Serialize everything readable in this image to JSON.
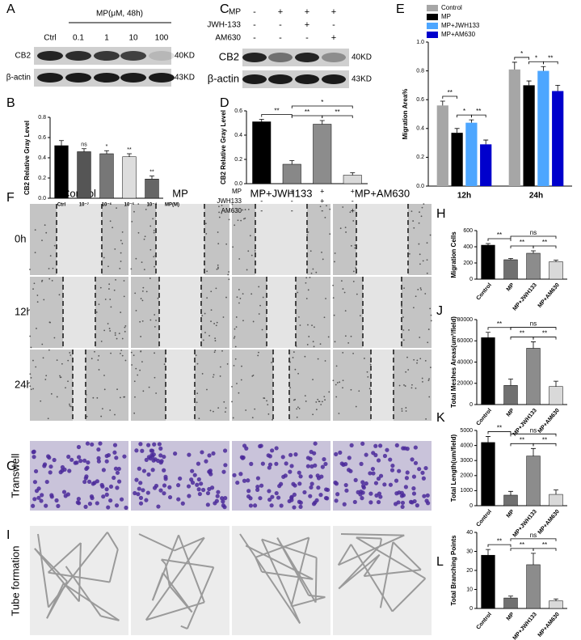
{
  "blot_a": {
    "letter": "A",
    "treatment": "MP(μM,  48h)",
    "lanes": [
      "Ctrl",
      "0.1",
      "1",
      "10",
      "100"
    ],
    "bands": [
      {
        "name": "CB2",
        "size": "40KD"
      },
      {
        "name": "β-actin",
        "size": "43KD"
      }
    ]
  },
  "blot_c": {
    "letter": "C",
    "conditions": [
      {
        "name": "MP",
        "signs": [
          "-",
          "+",
          "+",
          "+"
        ]
      },
      {
        "name": "JWH-133",
        "signs": [
          "-",
          "-",
          "+",
          "-"
        ]
      },
      {
        "name": "AM630",
        "signs": [
          "-",
          "-",
          "-",
          "+"
        ]
      }
    ],
    "bands": [
      {
        "name": "CB2",
        "size": "40KD"
      },
      {
        "name": "β-actin",
        "size": "43KD"
      }
    ]
  },
  "images": {
    "letter_f": "F",
    "letter_g": "G",
    "letter_i": "I",
    "columns": [
      "Control",
      "MP",
      "MP+JWH133",
      "MP+AM630"
    ],
    "rows": [
      "0h",
      "12h",
      "24h",
      "Transwell",
      "Tube formation"
    ]
  },
  "chart_data": [
    {
      "type": "bar",
      "letter": "B",
      "y_label": "CB2 Relative Gray Level",
      "categories": [
        "Ctrl",
        "10⁻⁷",
        "10⁻⁶",
        "10⁻⁵",
        "10⁻⁴"
      ],
      "x_note": "MP(M)",
      "values": [
        0.52,
        0.46,
        0.44,
        0.41,
        0.19
      ],
      "errors": [
        0.05,
        0.03,
        0.03,
        0.03,
        0.03
      ],
      "colors": [
        "#000000",
        "#555555",
        "#777777",
        "#dddddd",
        "#666666"
      ],
      "markers": [
        null,
        "ns",
        "*",
        "**",
        "**"
      ],
      "ylim": [
        0,
        0.8
      ],
      "yticks": [
        {
          "value": 0,
          "label": "0.0"
        },
        0.2,
        0.4,
        0.6,
        0.8
      ]
    },
    {
      "type": "bar",
      "letter": "D",
      "y_label": "CB2 Relative Gray Level",
      "categories": [
        null,
        null,
        null,
        null
      ],
      "conditions": [
        {
          "name": "MP",
          "signs": [
            "-",
            "+",
            "+",
            "+"
          ]
        },
        {
          "name": "JWH133",
          "signs": [
            "-",
            "-",
            "+",
            "-"
          ]
        },
        {
          "name": "AM630",
          "signs": [
            "-",
            "-",
            "-",
            "+"
          ]
        }
      ],
      "values": [
        0.51,
        0.16,
        0.49,
        0.07
      ],
      "errors": [
        0.02,
        0.03,
        0.03,
        0.02
      ],
      "colors": [
        "#000000",
        "#888888",
        "#8c8c8c",
        "#d9d9d9"
      ],
      "brackets": [
        {
          "from": 0,
          "to": 1,
          "label": "**"
        },
        {
          "from": 1,
          "to": 2,
          "label": "**"
        },
        {
          "from": 2,
          "to": 3,
          "label": "**"
        },
        {
          "from": 1,
          "to": 3,
          "label": "*"
        }
      ],
      "ylim": [
        0,
        0.6
      ],
      "yticks": [
        {
          "value": 0,
          "label": "0.0"
        },
        0.2,
        0.4,
        0.6
      ]
    },
    {
      "type": "grouped_bar",
      "letter": "E",
      "y_label": "Migration Area%",
      "categories": [
        "12h",
        "24h"
      ],
      "series": [
        {
          "name": "Control",
          "color": "#a6a6a6",
          "values": [
            0.56,
            0.81
          ],
          "errors": [
            0.03,
            0.05
          ]
        },
        {
          "name": "MP",
          "color": "#000000",
          "values": [
            0.37,
            0.7
          ],
          "errors": [
            0.03,
            0.03
          ]
        },
        {
          "name": "MP+JWH133",
          "color": "#4da6ff",
          "values": [
            0.44,
            0.8
          ],
          "errors": [
            0.02,
            0.03
          ]
        },
        {
          "name": "MP+AM630",
          "color": "#0000cc",
          "values": [
            0.29,
            0.66
          ],
          "errors": [
            0.03,
            0.04
          ]
        }
      ],
      "brackets": [
        {
          "group": 0,
          "from": 0,
          "to": 1,
          "label": "**"
        },
        {
          "group": 0,
          "from": 1,
          "to": 2,
          "label": "*"
        },
        {
          "group": 0,
          "from": 2,
          "to": 3,
          "label": "**"
        },
        {
          "group": 1,
          "from": 0,
          "to": 1,
          "label": "*"
        },
        {
          "group": 1,
          "from": 1,
          "to": 2,
          "label": "*"
        },
        {
          "group": 1,
          "from": 2,
          "to": 3,
          "label": "**"
        }
      ],
      "ylim": [
        0,
        1.0
      ],
      "yticks": [
        {
          "value": 0,
          "label": "0.0"
        },
        0.2,
        0.4,
        0.6,
        0.8,
        {
          "value": 1,
          "label": "1.0"
        }
      ]
    },
    {
      "type": "bar",
      "letter": "H",
      "y_label": "Migration Cells",
      "categories": [
        "Control",
        "MP",
        "MP+JWH133",
        "MP+AM630"
      ],
      "values": [
        420,
        240,
        320,
        215
      ],
      "errors": [
        20,
        15,
        30,
        20
      ],
      "colors": [
        "#000000",
        "#707070",
        "#8c8c8c",
        "#d9d9d9"
      ],
      "brackets": [
        {
          "from": 0,
          "to": 1,
          "label": "**"
        },
        {
          "from": 1,
          "to": 2,
          "label": "**"
        },
        {
          "from": 2,
          "to": 3,
          "label": "**"
        },
        {
          "from": 1,
          "to": 3,
          "label": "ns"
        }
      ],
      "ylim": [
        0,
        600
      ],
      "yticks": [
        0,
        200,
        400,
        600
      ]
    },
    {
      "type": "bar",
      "letter": "J",
      "y_label": "Total Meshes Areas(um²/field)",
      "categories": [
        "Control",
        "MP",
        "MP+JWH133",
        "MP+AM630"
      ],
      "values": [
        63000,
        18000,
        53000,
        17000
      ],
      "errors": [
        5000,
        6000,
        6000,
        5000
      ],
      "colors": [
        "#000000",
        "#707070",
        "#8c8c8c",
        "#d9d9d9"
      ],
      "brackets": [
        {
          "from": 0,
          "to": 1,
          "label": "**"
        },
        {
          "from": 1,
          "to": 2,
          "label": "**"
        },
        {
          "from": 2,
          "to": 3,
          "label": "**"
        },
        {
          "from": 1,
          "to": 3,
          "label": "ns"
        }
      ],
      "ylim": [
        0,
        80000
      ],
      "yticks": [
        0,
        20000,
        40000,
        60000,
        80000
      ]
    },
    {
      "type": "bar",
      "letter": "K",
      "y_label": "Total Length(um/field)",
      "categories": [
        "Control",
        "MP",
        "MP+JWH133",
        "MP+AM630"
      ],
      "values": [
        4200,
        700,
        3300,
        750
      ],
      "errors": [
        400,
        250,
        500,
        300
      ],
      "colors": [
        "#000000",
        "#707070",
        "#8c8c8c",
        "#d9d9d9"
      ],
      "brackets": [
        {
          "from": 0,
          "to": 1,
          "label": "**"
        },
        {
          "from": 1,
          "to": 2,
          "label": "**"
        },
        {
          "from": 2,
          "to": 3,
          "label": "**"
        },
        {
          "from": 1,
          "to": 3,
          "label": "ns"
        }
      ],
      "ylim": [
        0,
        5000
      ],
      "yticks": [
        0,
        1000,
        2000,
        3000,
        4000,
        5000
      ]
    },
    {
      "type": "bar",
      "letter": "L",
      "y_label": "Total Branching Points",
      "categories": [
        "Control",
        "MP",
        "MP+JWH133",
        "MP+AM630"
      ],
      "values": [
        28,
        5.5,
        23,
        4
      ],
      "errors": [
        3,
        1,
        6,
        1
      ],
      "colors": [
        "#000000",
        "#707070",
        "#8c8c8c",
        "#d9d9d9"
      ],
      "brackets": [
        {
          "from": 0,
          "to": 1,
          "label": "**"
        },
        {
          "from": 1,
          "to": 2,
          "label": "**"
        },
        {
          "from": 2,
          "to": 3,
          "label": "**"
        },
        {
          "from": 1,
          "to": 3,
          "label": "ns"
        }
      ],
      "ylim": [
        0,
        40
      ],
      "yticks": [
        0,
        10,
        20,
        30,
        40
      ]
    }
  ]
}
